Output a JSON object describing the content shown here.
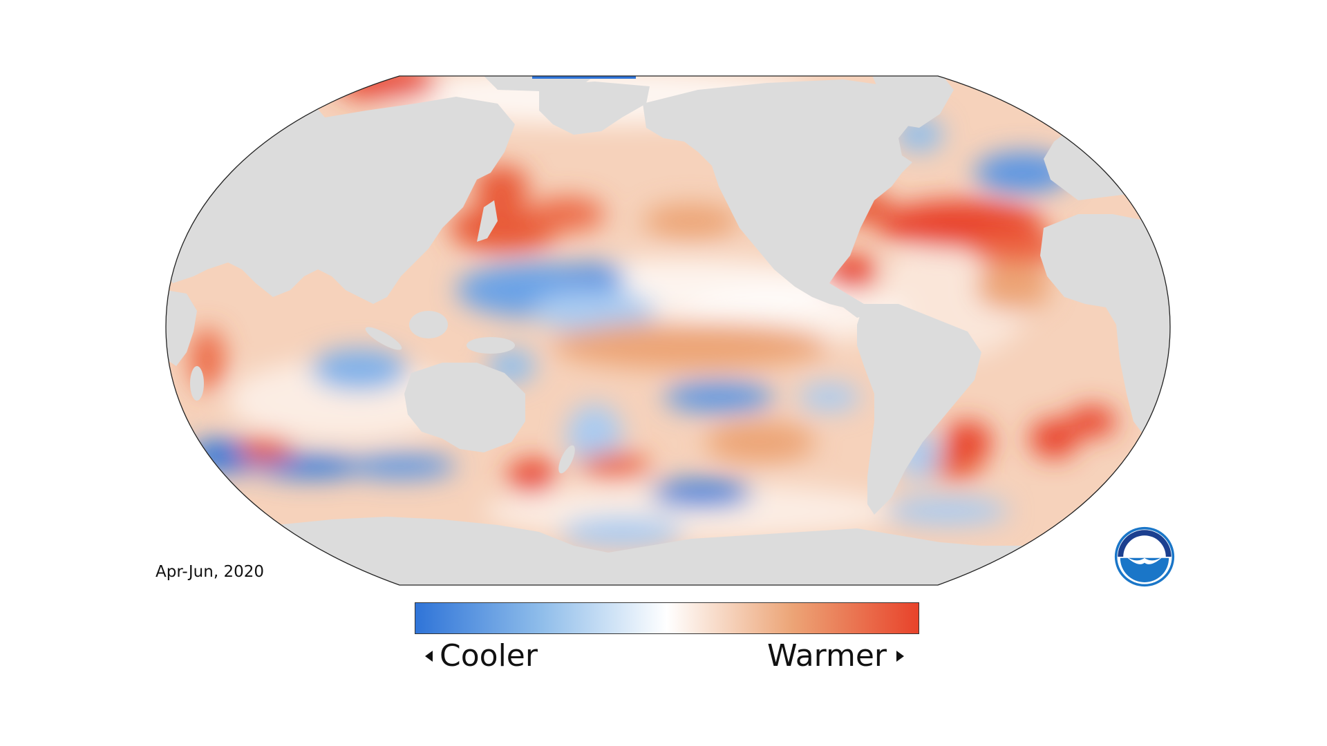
{
  "map": {
    "projection": "Robinson",
    "period_label": "Apr-Jun, 2020",
    "land_color": "#dcdcdc",
    "ocean_cool_color": "#2e6fd6",
    "ocean_neutral_color": "#ffffff",
    "ocean_warm_color": "#e8432b",
    "outline_color": "#222222"
  },
  "legend": {
    "cooler_label": "Cooler",
    "warmer_label": "Warmer",
    "gradient_colors": [
      "#2f74d8",
      "#8fbdea",
      "#ffffff",
      "#eca476",
      "#e8432b"
    ]
  },
  "logo": {
    "text": "NOAA",
    "name": "noaa-logo",
    "color": "#1a76c8"
  }
}
